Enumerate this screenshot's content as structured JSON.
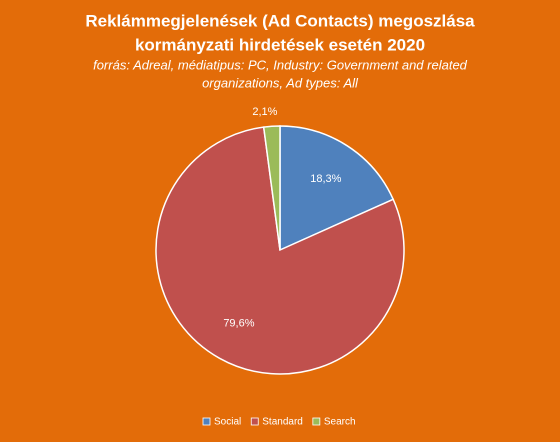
{
  "chart_data": {
    "type": "pie",
    "title": [
      "Reklámmegjelenések (Ad Contacts) megoszlása",
      "kormányzati hirdetések esetén 2020"
    ],
    "subtitle": [
      "forrás: Adreal, médiatipus: PC, Industry: Government and related",
      "organizations, Ad types: All"
    ],
    "categories": [
      "Social",
      "Standard",
      "Search"
    ],
    "values": [
      18.3,
      79.6,
      2.1
    ],
    "value_labels": [
      "18,3%",
      "79,6%",
      "2,1%"
    ],
    "colors": [
      "#4f81bd",
      "#c0504d",
      "#9bbb59"
    ],
    "legend": "bottom"
  }
}
